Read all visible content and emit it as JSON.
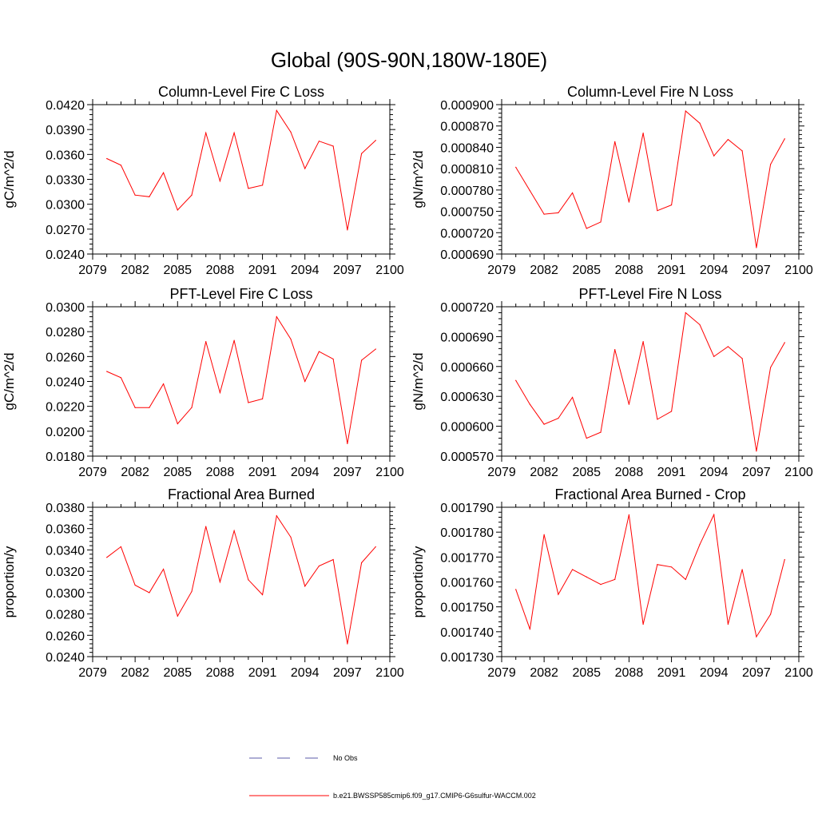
{
  "figure": {
    "title": "Global (90S-90N,180W-180E)"
  },
  "legend": {
    "items": [
      {
        "label": "No Obs",
        "color": "#5b5ba8",
        "style": "dashed"
      },
      {
        "label": "b.e21.BWSSP585cmip6.f09_g17.CMIP6-G6sulfur-WACCM.002",
        "color": "#ff0000",
        "style": "solid"
      }
    ]
  },
  "chart_data": [
    {
      "type": "line",
      "title": "Column-Level Fire C Loss",
      "ylabel": "gC/m^2/d",
      "xlim": [
        2079,
        2100
      ],
      "ylim": [
        0.024,
        0.042
      ],
      "xticks": [
        "2079",
        "2082",
        "2085",
        "2088",
        "2091",
        "2094",
        "2097",
        "2100"
      ],
      "yticks": [
        "0.0240",
        "0.0270",
        "0.0300",
        "0.0330",
        "0.0360",
        "0.0390",
        "0.0420"
      ],
      "x": [
        2080,
        2081,
        2082,
        2083,
        2084,
        2085,
        2086,
        2087,
        2088,
        2089,
        2090,
        2091,
        2092,
        2093,
        2094,
        2095,
        2096,
        2097,
        2098,
        2099
      ],
      "series": [
        {
          "color": "#ff0000",
          "values": [
            0.0355,
            0.0347,
            0.0311,
            0.0309,
            0.0338,
            0.0293,
            0.0311,
            0.0386,
            0.0328,
            0.0386,
            0.0319,
            0.0323,
            0.0413,
            0.0387,
            0.0343,
            0.0376,
            0.037,
            0.0269,
            0.0361,
            0.0377
          ]
        }
      ]
    },
    {
      "type": "line",
      "title": "Column-Level Fire N Loss",
      "ylabel": "gN/m^2/d",
      "xlim": [
        2079,
        2100
      ],
      "ylim": [
        0.00069,
        0.0009
      ],
      "xticks": [
        "2079",
        "2082",
        "2085",
        "2088",
        "2091",
        "2094",
        "2097",
        "2100"
      ],
      "yticks": [
        "0.000690",
        "0.000720",
        "0.000750",
        "0.000780",
        "0.000810",
        "0.000840",
        "0.000870",
        "0.000900"
      ],
      "x": [
        2080,
        2081,
        2082,
        2083,
        2084,
        2085,
        2086,
        2087,
        2088,
        2089,
        2090,
        2091,
        2092,
        2093,
        2094,
        2095,
        2096,
        2097,
        2098,
        2099
      ],
      "series": [
        {
          "color": "#ff0000",
          "values": [
            0.000812,
            0.000779,
            0.000746,
            0.000748,
            0.000776,
            0.000726,
            0.000735,
            0.000848,
            0.000763,
            0.00086,
            0.000751,
            0.000759,
            0.000891,
            0.000874,
            0.000828,
            0.000851,
            0.000835,
            0.000699,
            0.000816,
            0.000852
          ]
        }
      ]
    },
    {
      "type": "line",
      "title": "PFT-Level Fire C Loss",
      "ylabel": "gC/m^2/d",
      "xlim": [
        2079,
        2100
      ],
      "ylim": [
        0.018,
        0.03
      ],
      "xticks": [
        "2079",
        "2082",
        "2085",
        "2088",
        "2091",
        "2094",
        "2097",
        "2100"
      ],
      "yticks": [
        "0.0180",
        "0.0200",
        "0.0220",
        "0.0240",
        "0.0260",
        "0.0280",
        "0.0300"
      ],
      "x": [
        2080,
        2081,
        2082,
        2083,
        2084,
        2085,
        2086,
        2087,
        2088,
        2089,
        2090,
        2091,
        2092,
        2093,
        2094,
        2095,
        2096,
        2097,
        2098,
        2099
      ],
      "series": [
        {
          "color": "#ff0000",
          "values": [
            0.0248,
            0.0243,
            0.0219,
            0.0219,
            0.0238,
            0.0206,
            0.0219,
            0.0272,
            0.0231,
            0.0273,
            0.0223,
            0.0226,
            0.0292,
            0.0274,
            0.024,
            0.0264,
            0.0258,
            0.019,
            0.0257,
            0.0266
          ]
        }
      ]
    },
    {
      "type": "line",
      "title": "PFT-Level Fire N Loss",
      "ylabel": "gN/m^2/d",
      "xlim": [
        2079,
        2100
      ],
      "ylim": [
        0.00057,
        0.00072
      ],
      "xticks": [
        "2079",
        "2082",
        "2085",
        "2088",
        "2091",
        "2094",
        "2097",
        "2100"
      ],
      "yticks": [
        "0.000570",
        "0.000600",
        "0.000630",
        "0.000660",
        "0.000690",
        "0.000720"
      ],
      "x": [
        2080,
        2081,
        2082,
        2083,
        2084,
        2085,
        2086,
        2087,
        2088,
        2089,
        2090,
        2091,
        2092,
        2093,
        2094,
        2095,
        2096,
        2097,
        2098,
        2099
      ],
      "series": [
        {
          "color": "#ff0000",
          "values": [
            0.000646,
            0.000622,
            0.000602,
            0.000608,
            0.000629,
            0.000588,
            0.000594,
            0.000677,
            0.000622,
            0.000685,
            0.000607,
            0.000615,
            0.000714,
            0.000702,
            0.00067,
            0.00068,
            0.000668,
            0.000575,
            0.000659,
            0.000684
          ]
        }
      ]
    },
    {
      "type": "line",
      "title": "Fractional Area Burned",
      "ylabel": "proportion/y",
      "xlim": [
        2079,
        2100
      ],
      "ylim": [
        0.024,
        0.038
      ],
      "xticks": [
        "2079",
        "2082",
        "2085",
        "2088",
        "2091",
        "2094",
        "2097",
        "2100"
      ],
      "yticks": [
        "0.0240",
        "0.0260",
        "0.0280",
        "0.0300",
        "0.0320",
        "0.0340",
        "0.0360",
        "0.0380"
      ],
      "x": [
        2080,
        2081,
        2082,
        2083,
        2084,
        2085,
        2086,
        2087,
        2088,
        2089,
        2090,
        2091,
        2092,
        2093,
        2094,
        2095,
        2096,
        2097,
        2098,
        2099
      ],
      "series": [
        {
          "color": "#ff0000",
          "values": [
            0.0333,
            0.0343,
            0.0307,
            0.03,
            0.0322,
            0.0278,
            0.0301,
            0.0362,
            0.031,
            0.0358,
            0.0312,
            0.0298,
            0.0372,
            0.0352,
            0.0306,
            0.0325,
            0.0331,
            0.0252,
            0.0328,
            0.0343
          ]
        }
      ]
    },
    {
      "type": "line",
      "title": "Fractional Area Burned - Crop",
      "ylabel": "proportion/y",
      "xlim": [
        2079,
        2100
      ],
      "ylim": [
        0.00173,
        0.00179
      ],
      "xticks": [
        "2079",
        "2082",
        "2085",
        "2088",
        "2091",
        "2094",
        "2097",
        "2100"
      ],
      "yticks": [
        "0.001730",
        "0.001740",
        "0.001750",
        "0.001760",
        "0.001770",
        "0.001780",
        "0.001790"
      ],
      "x": [
        2080,
        2081,
        2082,
        2083,
        2084,
        2085,
        2086,
        2087,
        2088,
        2089,
        2090,
        2091,
        2092,
        2093,
        2094,
        2095,
        2096,
        2097,
        2098,
        2099
      ],
      "series": [
        {
          "color": "#ff0000",
          "values": [
            0.001757,
            0.001741,
            0.001779,
            0.001755,
            0.001765,
            0.001762,
            0.001759,
            0.001761,
            0.001787,
            0.001743,
            0.001767,
            0.001766,
            0.001761,
            0.001775,
            0.001787,
            0.001743,
            0.001765,
            0.001738,
            0.001747,
            0.001769
          ]
        }
      ]
    }
  ]
}
